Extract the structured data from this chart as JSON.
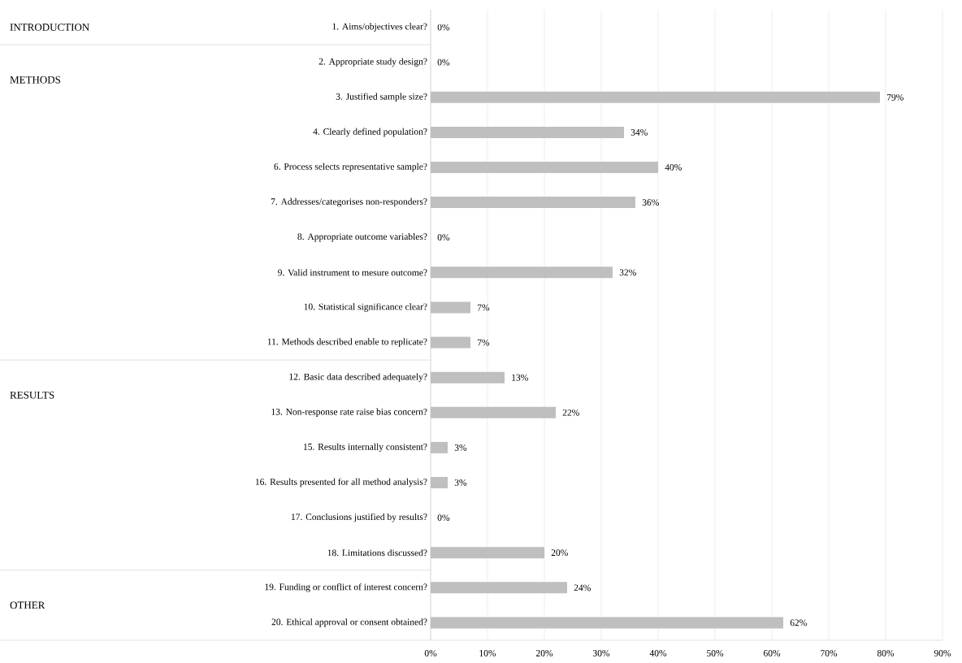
{
  "chart_data": {
    "type": "bar",
    "orientation": "horizontal",
    "categories": [
      "1. Aims/objectives clear?",
      "2. Appropriate study design?",
      "3. Justified sample size?",
      "4. Clearly defined population?",
      "6. Process selects representative sample?",
      "7. Addresses/categorises non-responders?",
      "8. Appropriate outcome variables?",
      "9. Valid instrument to mesure outcome?",
      "10. Statistical significance clear?",
      "11. Methods described enable to replicate?",
      "12. Basic data described adequately?",
      "13. Non-response rate raise bias concern?",
      "15. Results internally consistent?",
      "16. Results presented for all method analysis?",
      "17. Conclusions justified by results?",
      "18. Limitations discussed?",
      "19. Funding or conflict of interest concern?",
      "20. Ethical approval or consent obtained?"
    ],
    "values": [
      0,
      0,
      79,
      34,
      40,
      36,
      0,
      32,
      7,
      7,
      13,
      22,
      3,
      3,
      0,
      20,
      24,
      62
    ],
    "value_labels": [
      "0%",
      "0%",
      "79%",
      "34%",
      "40%",
      "36%",
      "0%",
      "32%",
      "7%",
      "7%",
      "13%",
      "22%",
      "3%",
      "3%",
      "0%",
      "20%",
      "24%",
      "62%"
    ],
    "color": "#bfbfbf",
    "xlim": [
      0,
      90
    ],
    "xticks": [
      {
        "value": 0,
        "label": "0%"
      },
      {
        "value": 10,
        "label": "10%"
      },
      {
        "value": 20,
        "label": "20%"
      },
      {
        "value": 30,
        "label": "30%"
      },
      {
        "value": 40,
        "label": "40%"
      },
      {
        "value": 50,
        "label": "50%"
      },
      {
        "value": 60,
        "label": "60%"
      },
      {
        "value": 70,
        "label": "70%"
      },
      {
        "value": 80,
        "label": "80%"
      },
      {
        "value": 90,
        "label": "90%"
      }
    ],
    "grid": "x",
    "annotations": [
      "INTRODUCTION",
      "METHODS",
      "RESULTS",
      "OTHER"
    ]
  }
}
